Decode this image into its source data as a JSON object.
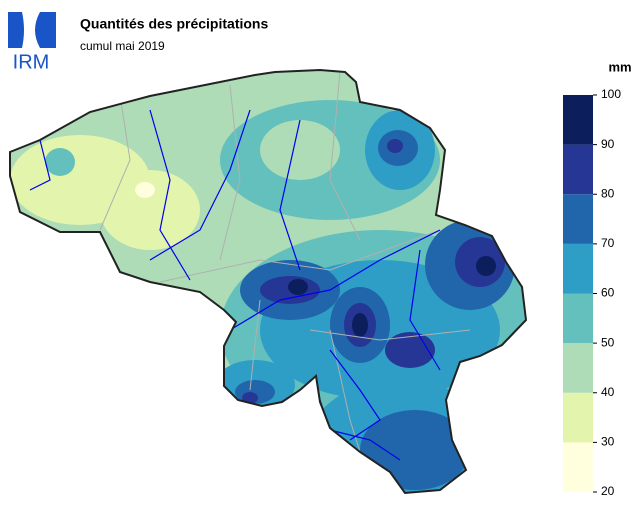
{
  "logo": "IRM",
  "title": "Quantités des précipitations",
  "subtitle": "cumul mai 2019",
  "legend": {
    "unit": "mm",
    "ticks": [
      20,
      30,
      40,
      50,
      60,
      70,
      80,
      90,
      100
    ],
    "colors": [
      "#ffffdd",
      "#e3f4ad",
      "#addcb6",
      "#63c0bd",
      "#2e9ec7",
      "#2166ab",
      "#263695",
      "#0c1f5c"
    ]
  }
}
